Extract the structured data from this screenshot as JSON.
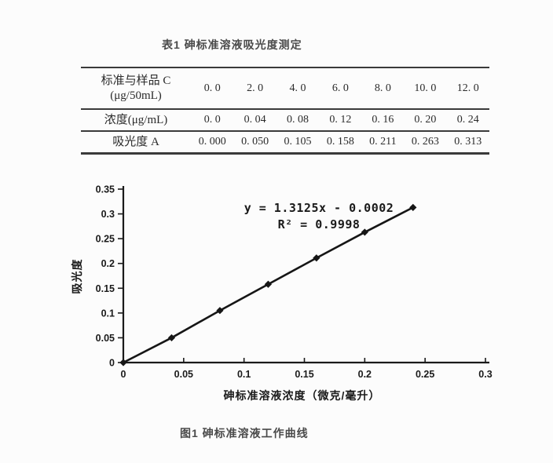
{
  "table": {
    "title": "表1 砷标准溶液吸光度测定",
    "rows": [
      {
        "label_lines": [
          "标准与样品 C",
          "(μg/50mL)"
        ],
        "values": [
          "0. 0",
          "2. 0",
          "4. 0",
          "6. 0",
          "8. 0",
          "10. 0",
          "12. 0"
        ]
      },
      {
        "label_lines": [
          "浓度(μg/mL)"
        ],
        "values": [
          "0. 0",
          "0. 04",
          "0. 08",
          "0. 12",
          "0. 16",
          "0. 20",
          "0. 24"
        ]
      },
      {
        "label_lines": [
          "吸光度 A"
        ],
        "values": [
          "0. 000",
          "0. 050",
          "0. 105",
          "0. 158",
          "0. 211",
          "0. 263",
          "0. 313"
        ]
      }
    ]
  },
  "figure": {
    "caption": "图1 砷标准溶液工作曲线"
  },
  "chart_data": {
    "type": "line",
    "x": [
      0,
      0.04,
      0.08,
      0.12,
      0.16,
      0.2,
      0.24
    ],
    "y": [
      0.0,
      0.05,
      0.105,
      0.158,
      0.211,
      0.263,
      0.313
    ],
    "xlabel": "砷标准溶液浓度（微克/毫升）",
    "ylabel": "吸光度",
    "xlim": [
      0,
      0.3
    ],
    "ylim": [
      0,
      0.35
    ],
    "xticks": [
      0,
      0.05,
      0.1,
      0.15,
      0.2,
      0.25,
      0.3
    ],
    "xtick_labels": [
      "0",
      "0.05",
      "0.1",
      "0.15",
      "0.2",
      "0.25",
      "0.3"
    ],
    "yticks": [
      0,
      0.05,
      0.1,
      0.15,
      0.2,
      0.25,
      0.3,
      0.35
    ],
    "ytick_labels": [
      "0",
      "0.05",
      "0.1",
      "0.15",
      "0.2",
      "0.25",
      "0.3",
      "0.35"
    ],
    "annotation_line1": "y = 1.3125x - 0.0002",
    "annotation_line2": "R² = 0.9998",
    "marker": "diamond",
    "line_color": "#161616",
    "axis_color": "#1a1a1a",
    "grid": false,
    "legend": "none"
  }
}
